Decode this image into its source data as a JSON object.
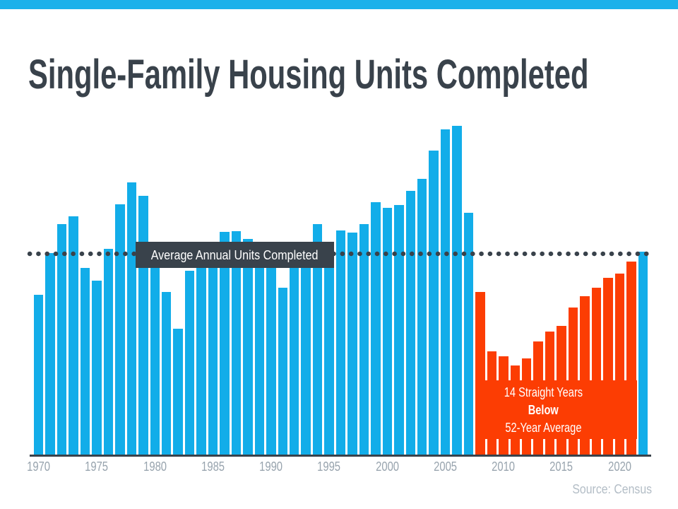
{
  "accent": {
    "top_bar_color": "#1BB1EA"
  },
  "header": {
    "title": "Single-Family Housing Units Completed"
  },
  "chart_data": {
    "type": "bar",
    "title": "Single-Family Housing Units Completed",
    "unit": "thousands of single-family housing units completed per year (read from bar heights)",
    "x": [
      1970,
      1971,
      1972,
      1973,
      1974,
      1975,
      1976,
      1977,
      1978,
      1979,
      1980,
      1981,
      1982,
      1983,
      1984,
      1985,
      1986,
      1987,
      1988,
      1989,
      1990,
      1991,
      1992,
      1993,
      1994,
      1995,
      1996,
      1997,
      1998,
      1999,
      2000,
      2001,
      2002,
      2003,
      2004,
      2005,
      2006,
      2007,
      2008,
      2009,
      2010,
      2011,
      2012,
      2013,
      2014,
      2015,
      2016,
      2017,
      2018,
      2019,
      2020,
      2021,
      2022
    ],
    "values": [
      802,
      1014,
      1160,
      1197,
      940,
      875,
      1034,
      1258,
      1369,
      1301,
      957,
      819,
      632,
      924,
      1025,
      1072,
      1120,
      1123,
      1085,
      1026,
      966,
      838,
      964,
      1039,
      1160,
      1066,
      1129,
      1116,
      1160,
      1270,
      1242,
      1256,
      1325,
      1386,
      1531,
      1636,
      1654,
      1218,
      819,
      520,
      496,
      447,
      483,
      569,
      620,
      648,
      738,
      795,
      840,
      888,
      912,
      971,
      1019
    ],
    "x_tick_labels": [
      "1970",
      "1975",
      "1980",
      "1985",
      "1990",
      "1995",
      "2000",
      "2005",
      "2010",
      "2015",
      "2020"
    ],
    "average_line": {
      "label": "Average Annual Units Completed",
      "value": 1010,
      "style": "dotted"
    },
    "below_average_annotation": {
      "line1": "14 Straight Years",
      "line2": "Below",
      "line3": "52-Year Average",
      "years_start": 2008,
      "years_end": 2021
    },
    "colors": {
      "above_bar": "#12ADE9",
      "below_bar": "#FC3D03",
      "line_and_box": "#39424B",
      "tick_label": "#98A4AE"
    },
    "ylim": [
      0,
      1700
    ],
    "grid": false,
    "legend_position": "none"
  },
  "footer": {
    "source": "Source: Census"
  }
}
